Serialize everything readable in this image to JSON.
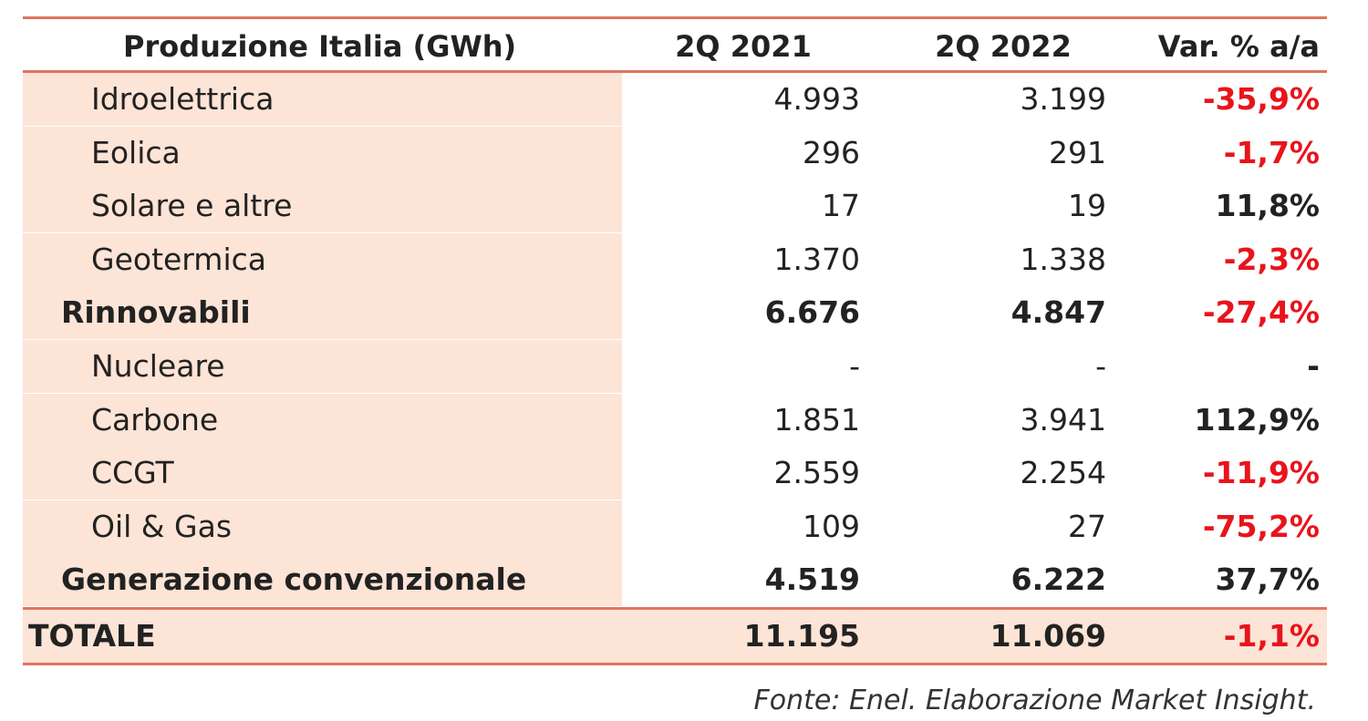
{
  "chart_data": {
    "type": "table",
    "columns": [
      "Produzione Italia (GWh)",
      "2Q 2021",
      "2Q 2022",
      "Var. % a/a"
    ],
    "rows": [
      {
        "label": "Idroelettrica",
        "v2021": "4.993",
        "v2022": "3.199",
        "var": "-35,9%",
        "level": "item"
      },
      {
        "label": "Eolica",
        "v2021": "296",
        "v2022": "291",
        "var": "-1,7%",
        "level": "item"
      },
      {
        "label": "Solare e altre",
        "v2021": "17",
        "v2022": "19",
        "var": "11,8%",
        "level": "item"
      },
      {
        "label": "Geotermica",
        "v2021": "1.370",
        "v2022": "1.338",
        "var": "-2,3%",
        "level": "item"
      },
      {
        "label": "Rinnovabili",
        "v2021": "6.676",
        "v2022": "4.847",
        "var": "-27,4%",
        "level": "subtotal"
      },
      {
        "label": "Nucleare",
        "v2021": "-",
        "v2022": "-",
        "var": "-",
        "level": "item"
      },
      {
        "label": "Carbone",
        "v2021": "1.851",
        "v2022": "3.941",
        "var": "112,9%",
        "level": "item"
      },
      {
        "label": "CCGT",
        "v2021": "2.559",
        "v2022": "2.254",
        "var": "-11,9%",
        "level": "item"
      },
      {
        "label": "Oil & Gas",
        "v2021": "109",
        "v2022": "27",
        "var": "-75,2%",
        "level": "item"
      },
      {
        "label": "Generazione convenzionale",
        "v2021": "4.519",
        "v2022": "6.222",
        "var": "37,7%",
        "level": "subtotal"
      }
    ],
    "total": {
      "label": "TOTALE",
      "v2021": "11.195",
      "v2022": "11.069",
      "var": "-1,1%"
    },
    "source": "Fonte: Enel. Elaborazione Market Insight.",
    "colors": {
      "rule": "#e07560",
      "label_fill": "#fce4d6",
      "negative": "#e8141b",
      "text": "#222222"
    }
  }
}
